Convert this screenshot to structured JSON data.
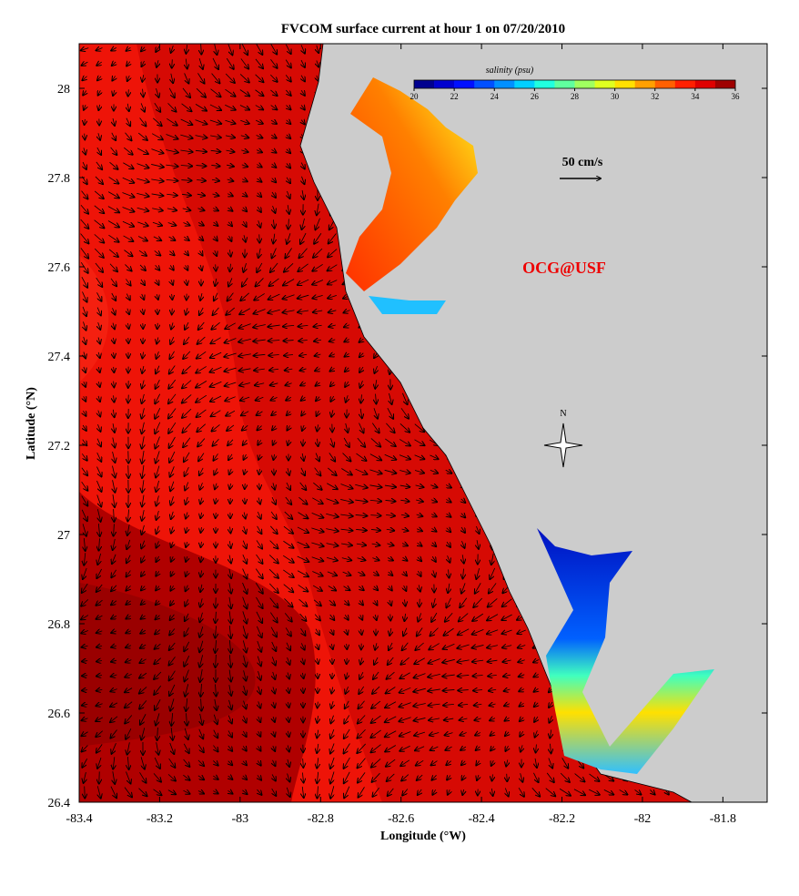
{
  "title": "FVCOM surface current at hour 1 on 07/20/2010",
  "map": {
    "x_label": "Longitude (°W)",
    "y_label": "Latitude (°N)",
    "xlim": [
      -83.4,
      -81.69
    ],
    "ylim": [
      26.4,
      28.1
    ],
    "xticks": [
      -83.4,
      -83.2,
      -83,
      -82.8,
      -82.6,
      -82.4,
      -82.2,
      -82,
      -81.8
    ],
    "yticks": [
      26.4,
      26.6,
      26.8,
      27,
      27.2,
      27.4,
      27.6,
      27.8,
      28
    ],
    "scale_label": "50 cm/s",
    "credit": "OCG@USF",
    "north_label": "N"
  },
  "colorbar": {
    "title": "salinity (psu)",
    "range": [
      20,
      36
    ],
    "ticks": [
      20,
      22,
      24,
      26,
      28,
      30,
      32,
      34,
      36
    ],
    "colors": [
      "#00008f",
      "#0000cf",
      "#0010ff",
      "#0050ff",
      "#0090ff",
      "#00d0ff",
      "#20ffdf",
      "#60ff9f",
      "#a0ff60",
      "#dfff20",
      "#ffe000",
      "#ffa000",
      "#ff6000",
      "#ff2000",
      "#df0000",
      "#9f0000"
    ]
  }
}
